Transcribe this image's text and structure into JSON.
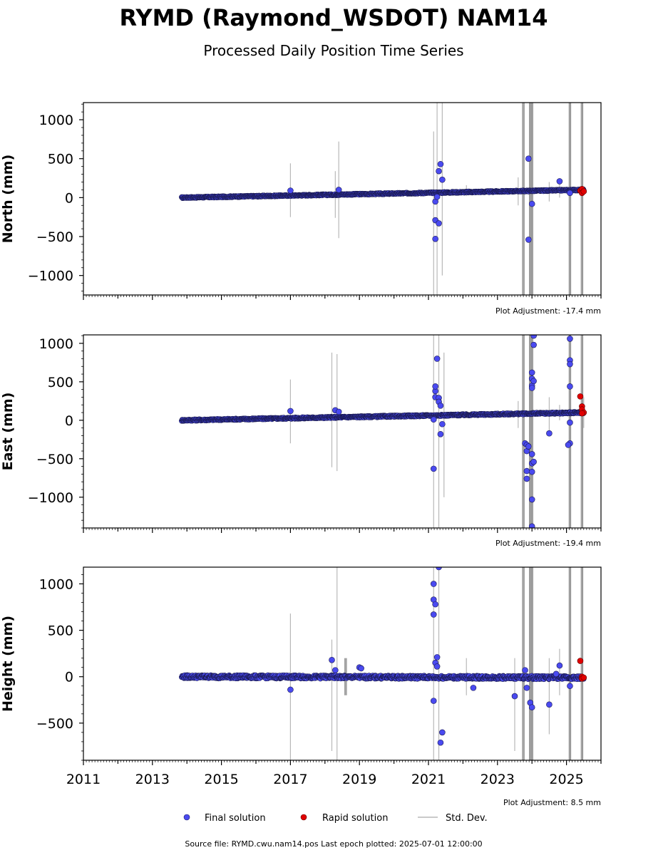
{
  "title": "RYMD (Raymond_WSDOT) NAM14",
  "subtitle": "Processed Daily Position Time Series",
  "footer": "Source file: RYMD.cwu.nam14.pos  Last epoch plotted: 2025-07-01 12:00:00",
  "legend": {
    "final": "Final solution",
    "rapid": "Rapid solution",
    "std": "Std. Dev."
  },
  "colors": {
    "final": "#4a4af0",
    "rapid": "#e00000",
    "std": "#b8b8b8",
    "std_dense": "#707070"
  },
  "chart_data": [
    {
      "type": "scatter",
      "ylabel": "North (mm)",
      "adjustment": "Plot Adjustment: -17.4 mm",
      "xlim": [
        2011,
        2026
      ],
      "ylim": [
        -1250,
        1220
      ],
      "yticks": [
        -1000,
        -500,
        0,
        500,
        1000
      ],
      "ytick_labels": [
        "−1000",
        "−500",
        "0",
        "500",
        "1000"
      ],
      "trend": {
        "start": [
          2013.85,
          0
        ],
        "end": [
          2025.5,
          100
        ],
        "spread": 8
      },
      "outliers": [
        [
          2017.0,
          90
        ],
        [
          2018.4,
          100
        ],
        [
          2021.2,
          -290
        ],
        [
          2021.2,
          -530
        ],
        [
          2021.2,
          -50
        ],
        [
          2021.25,
          10
        ],
        [
          2021.3,
          -330
        ],
        [
          2021.3,
          340
        ],
        [
          2021.35,
          430
        ],
        [
          2021.4,
          230
        ],
        [
          2023.9,
          500
        ],
        [
          2023.9,
          -540
        ],
        [
          2024.0,
          -80
        ],
        [
          2024.8,
          210
        ],
        [
          2025.1,
          60
        ]
      ],
      "rapid": [
        [
          2025.4,
          90
        ],
        [
          2025.45,
          110
        ],
        [
          2025.45,
          60
        ],
        [
          2025.5,
          80
        ]
      ],
      "std_lines": [
        [
          2017.0,
          -250,
          440
        ],
        [
          2018.3,
          -260,
          340
        ],
        [
          2018.4,
          -520,
          720
        ],
        [
          2021.15,
          -1250,
          850
        ],
        [
          2021.25,
          -1250,
          1220
        ],
        [
          2021.4,
          -1000,
          1220
        ],
        [
          2022.1,
          20,
          160
        ],
        [
          2023.6,
          -100,
          260
        ],
        [
          2024.5,
          -50,
          200
        ],
        [
          2024.8,
          0,
          180
        ]
      ],
      "std_dense": [
        [
          2023.75,
          -1250,
          1220
        ],
        [
          2023.95,
          -1250,
          1220
        ],
        [
          2024.0,
          -1250,
          1220
        ],
        [
          2025.1,
          -1250,
          1220
        ],
        [
          2025.45,
          -1250,
          1220
        ]
      ]
    },
    {
      "type": "scatter",
      "ylabel": "East (mm)",
      "adjustment": "Plot Adjustment: -19.4 mm",
      "xlim": [
        2011,
        2026
      ],
      "ylim": [
        -1400,
        1110
      ],
      "yticks": [
        -1000,
        -500,
        0,
        500,
        1000
      ],
      "ytick_labels": [
        "−1000",
        "−500",
        "0",
        "500",
        "1000"
      ],
      "trend": {
        "start": [
          2013.85,
          0
        ],
        "end": [
          2025.5,
          100
        ],
        "spread": 10
      },
      "outliers": [
        [
          2017.0,
          120
        ],
        [
          2018.3,
          130
        ],
        [
          2018.4,
          110
        ],
        [
          2021.15,
          -630
        ],
        [
          2021.15,
          10
        ],
        [
          2021.2,
          300
        ],
        [
          2021.2,
          380
        ],
        [
          2021.2,
          440
        ],
        [
          2021.25,
          800
        ],
        [
          2021.3,
          290
        ],
        [
          2021.3,
          240
        ],
        [
          2021.35,
          190
        ],
        [
          2021.4,
          -50
        ],
        [
          2021.35,
          -180
        ],
        [
          2023.8,
          -300
        ],
        [
          2023.85,
          -320
        ],
        [
          2023.85,
          -400
        ],
        [
          2023.85,
          -660
        ],
        [
          2023.85,
          -760
        ],
        [
          2023.9,
          -340
        ],
        [
          2024.0,
          620
        ],
        [
          2024.0,
          540
        ],
        [
          2024.0,
          450
        ],
        [
          2024.0,
          420
        ],
        [
          2024.0,
          -440
        ],
        [
          2024.0,
          -560
        ],
        [
          2024.0,
          -670
        ],
        [
          2024.0,
          -1030
        ],
        [
          2024.0,
          -1380
        ],
        [
          2024.05,
          1100
        ],
        [
          2024.05,
          980
        ],
        [
          2024.05,
          510
        ],
        [
          2024.05,
          -540
        ],
        [
          2024.5,
          -170
        ],
        [
          2025.1,
          1060
        ],
        [
          2025.1,
          780
        ],
        [
          2025.1,
          730
        ],
        [
          2025.1,
          440
        ],
        [
          2025.1,
          -300
        ],
        [
          2025.05,
          -320
        ],
        [
          2025.1,
          -30
        ]
      ],
      "rapid": [
        [
          2025.4,
          310
        ],
        [
          2025.45,
          180
        ],
        [
          2025.45,
          140
        ],
        [
          2025.5,
          100
        ],
        [
          2025.45,
          90
        ]
      ],
      "std_lines": [
        [
          2017.0,
          -300,
          530
        ],
        [
          2018.2,
          -610,
          880
        ],
        [
          2018.35,
          -660,
          860
        ],
        [
          2021.15,
          -1400,
          1110
        ],
        [
          2021.3,
          -1400,
          1110
        ],
        [
          2021.45,
          -1000,
          880
        ],
        [
          2022.1,
          30,
          120
        ],
        [
          2023.6,
          -100,
          250
        ],
        [
          2024.5,
          -200,
          300
        ],
        [
          2024.8,
          0,
          200
        ],
        [
          2025.5,
          -100,
          300
        ]
      ],
      "std_dense": [
        [
          2023.75,
          -1400,
          1110
        ],
        [
          2023.95,
          -1400,
          1110
        ],
        [
          2024.0,
          -1400,
          1110
        ],
        [
          2025.1,
          -1400,
          1110
        ],
        [
          2025.45,
          -1400,
          1110
        ]
      ]
    },
    {
      "type": "scatter",
      "ylabel": "Height (mm)",
      "adjustment": "Plot Adjustment: 8.5 mm",
      "xlim": [
        2011,
        2026
      ],
      "ylim": [
        -900,
        1180
      ],
      "yticks": [
        -500,
        0,
        500,
        1000
      ],
      "ytick_labels": [
        "−500",
        "0",
        "500",
        "1000"
      ],
      "xticks": [
        2011,
        2013,
        2015,
        2017,
        2019,
        2021,
        2023,
        2025
      ],
      "xtick_labels": [
        "2011",
        "2013",
        "2015",
        "2017",
        "2019",
        "2021",
        "2023",
        "2025"
      ],
      "trend": {
        "start": [
          2013.85,
          0
        ],
        "end": [
          2025.5,
          -10
        ],
        "spread": 18
      },
      "outliers": [
        [
          2017.0,
          -140
        ],
        [
          2018.2,
          180
        ],
        [
          2018.3,
          70
        ],
        [
          2019.0,
          100
        ],
        [
          2019.05,
          90
        ],
        [
          2021.15,
          1000
        ],
        [
          2021.15,
          830
        ],
        [
          2021.2,
          780
        ],
        [
          2021.15,
          670
        ],
        [
          2021.2,
          150
        ],
        [
          2021.25,
          210
        ],
        [
          2021.25,
          110
        ],
        [
          2021.15,
          -260
        ],
        [
          2021.3,
          1180
        ],
        [
          2021.35,
          -710
        ],
        [
          2021.4,
          -600
        ],
        [
          2022.3,
          -120
        ],
        [
          2023.5,
          -210
        ],
        [
          2023.8,
          70
        ],
        [
          2023.85,
          -120
        ],
        [
          2023.95,
          -280
        ],
        [
          2024.0,
          -330
        ],
        [
          2024.5,
          -300
        ],
        [
          2024.8,
          120
        ],
        [
          2024.7,
          30
        ],
        [
          2025.1,
          -100
        ]
      ],
      "rapid": [
        [
          2025.4,
          170
        ],
        [
          2025.45,
          0
        ],
        [
          2025.45,
          -20
        ],
        [
          2025.5,
          -10
        ]
      ],
      "std_lines": [
        [
          2017.0,
          -900,
          680
        ],
        [
          2018.2,
          -800,
          400
        ],
        [
          2018.35,
          -900,
          1180
        ],
        [
          2021.15,
          -900,
          1180
        ],
        [
          2021.3,
          -900,
          1180
        ],
        [
          2022.1,
          -200,
          200
        ],
        [
          2023.5,
          -800,
          200
        ],
        [
          2024.5,
          -620,
          200
        ],
        [
          2024.8,
          -200,
          300
        ]
      ],
      "std_dense": [
        [
          2018.6,
          -200,
          200
        ],
        [
          2023.75,
          -900,
          1180
        ],
        [
          2023.95,
          -900,
          1180
        ],
        [
          2024.0,
          -900,
          1180
        ],
        [
          2025.1,
          -900,
          1180
        ],
        [
          2025.45,
          -900,
          1180
        ]
      ]
    }
  ]
}
